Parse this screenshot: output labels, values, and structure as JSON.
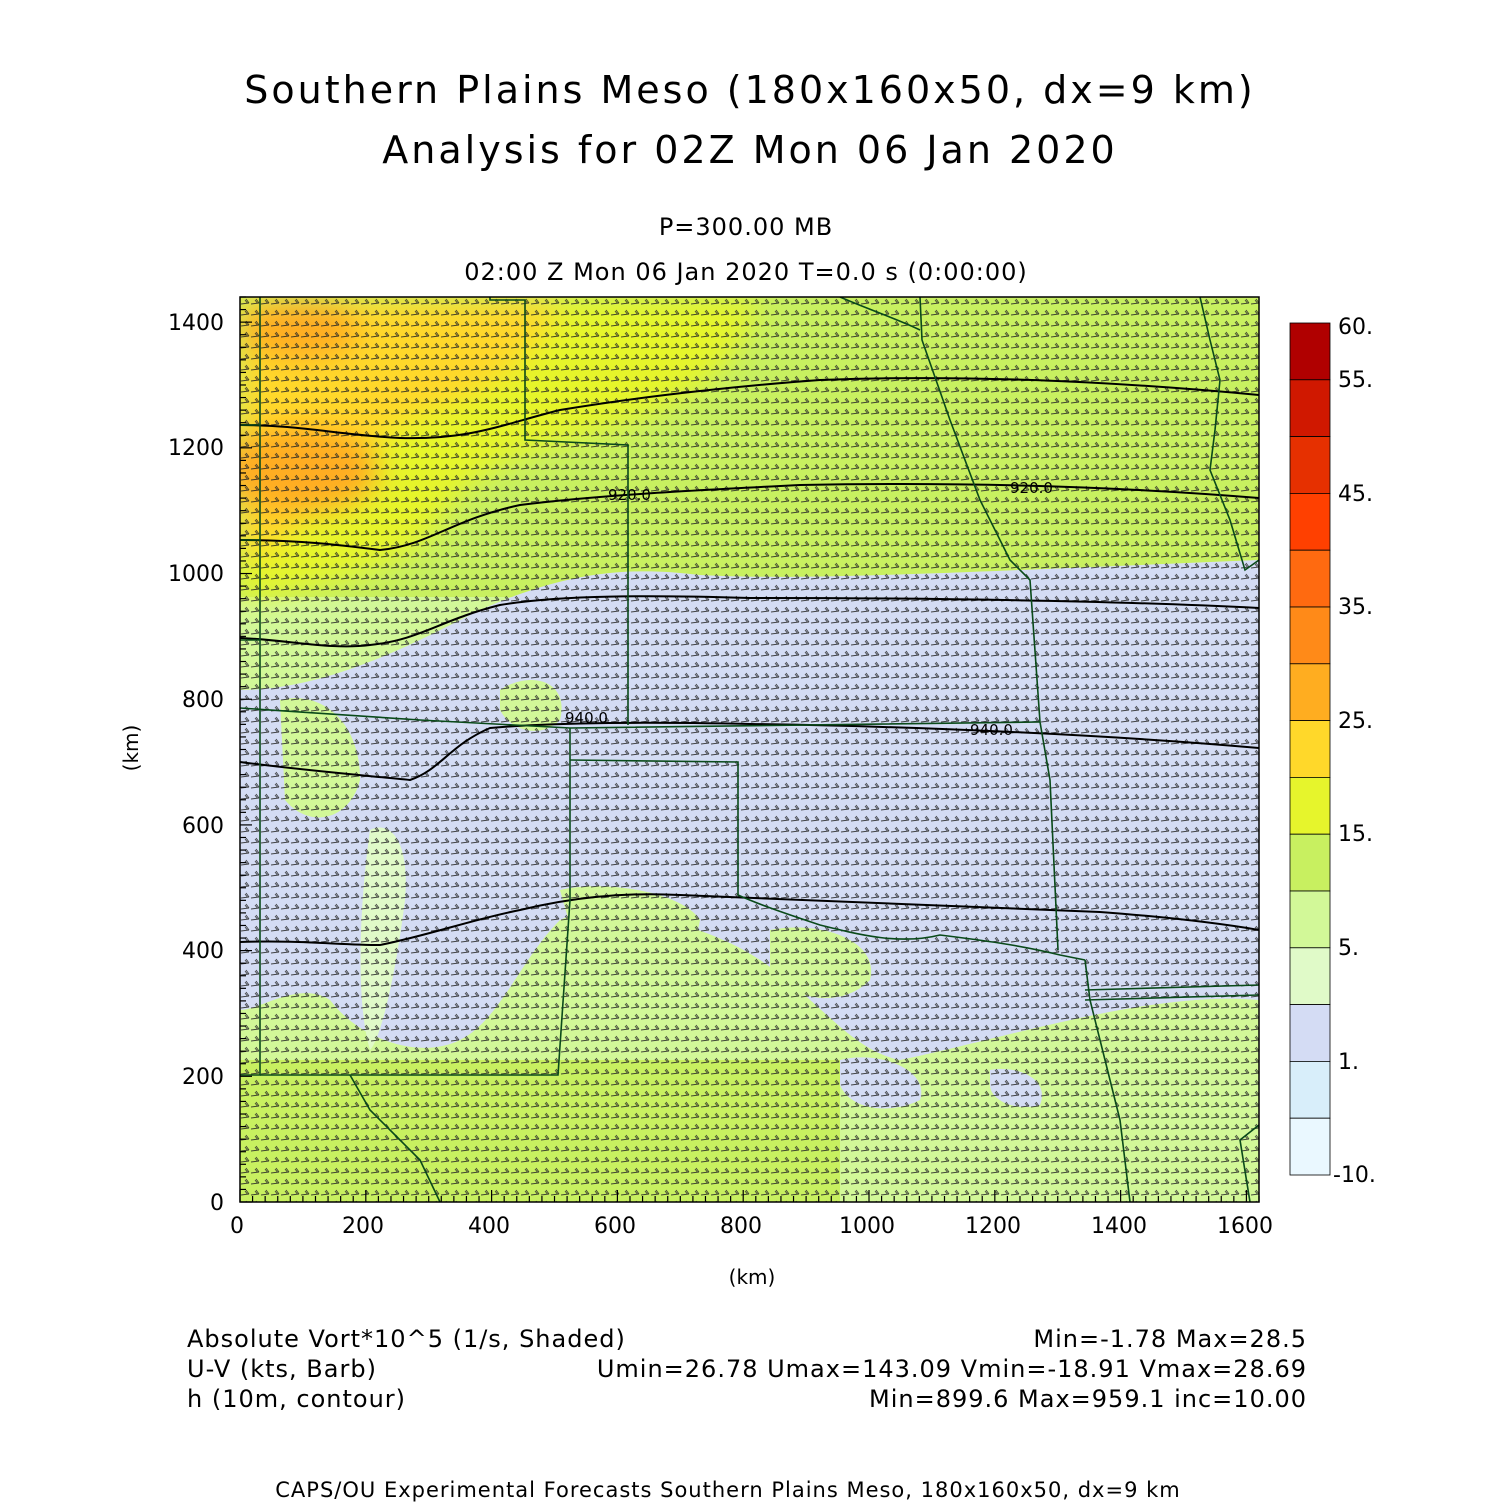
{
  "title": {
    "line1": "Southern Plains Meso (180x160x50, dx=9 km)",
    "line2": "Analysis for 02Z Mon 06 Jan 2020"
  },
  "subtitle": {
    "level": "P=300.00 MB",
    "time": "02:00 Z Mon 06 Jan 2020    T=0.0 s (0:00:00)"
  },
  "axes": {
    "x_label": "(km)",
    "y_label": "(km)",
    "x_range": [
      0,
      1620
    ],
    "y_range": [
      0,
      1440
    ],
    "x_ticks": [
      "0",
      "200",
      "400",
      "600",
      "800",
      "1000",
      "1200",
      "1400",
      "1600"
    ],
    "y_ticks": [
      "0",
      "200",
      "400",
      "600",
      "800",
      "1000",
      "1200",
      "1400"
    ]
  },
  "colorbar": {
    "labels": [
      "60.",
      "55.",
      "45.",
      "35.",
      "25.",
      "15.",
      "5.",
      "1.",
      "-10."
    ],
    "colors": [
      "#b00000",
      "#d01800",
      "#e63000",
      "#ff4000",
      "#ff6a10",
      "#ff8a18",
      "#ffad20",
      "#ffd82a",
      "#e6f52c",
      "#c8f060",
      "#d2f898",
      "#e0fac8",
      "#d4dcf4",
      "#d8eefa",
      "#eaf8ff"
    ]
  },
  "contour_labels": [
    "920.0",
    "920.0",
    "940.0",
    "940.0"
  ],
  "legend": {
    "field1": "Absolute Vort*10^5 (1/s, Shaded)",
    "field1_stats": "Min=-1.78 Max=28.5",
    "field2": "U-V (kts, Barb)",
    "field2_stats": "Umin=26.78 Umax=143.09 Vmin=-18.91 Vmax=28.69",
    "field3": "h (10m, contour)",
    "field3_stats": "Min=899.6 Max=959.1 inc=10.00"
  },
  "credit": "CAPS/OU Experimental Forecasts  Southern Plains Meso, 180x160x50, dx=9 km"
}
